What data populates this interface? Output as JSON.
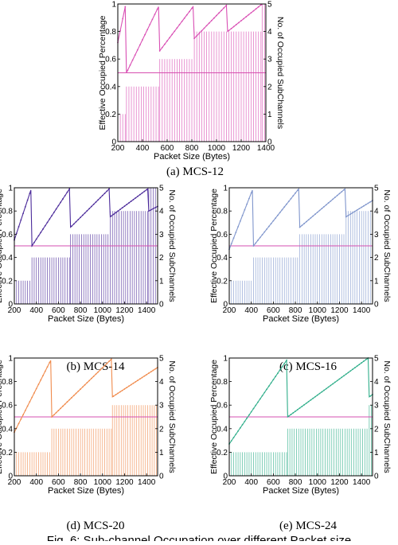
{
  "figure": {
    "caption": "Fig. 6: Sub-channel Occupation over different Packet size"
  },
  "chart_data": [
    {
      "type": "line",
      "caption": "(a) MCS-12",
      "color": "#d94fb4",
      "xlabel": "Packet Size (Bytes)",
      "ylabel_left": "Effective Occupied Percentage",
      "ylabel_right": "No. of Occupied SubChannels",
      "xlim": [
        200,
        1400
      ],
      "xticks": [
        "200",
        "400",
        "600",
        "800",
        "1000",
        "1200",
        "1400"
      ],
      "ylim_left": [
        0,
        1
      ],
      "yticks_left": [
        "0",
        "0.2",
        "0.4",
        "0.6",
        "0.8",
        "1"
      ],
      "ylim_right": [
        0,
        5
      ],
      "yticks_right": [
        "0",
        "1",
        "2",
        "3",
        "4",
        "5"
      ],
      "reference_line": 0.5,
      "packet_step": 20,
      "subchannel_steps": [
        {
          "x_start": 200,
          "x_end": 270,
          "subchannels": 1
        },
        {
          "x_start": 270,
          "x_end": 540,
          "subchannels": 2
        },
        {
          "x_start": 540,
          "x_end": 820,
          "subchannels": 3
        },
        {
          "x_start": 820,
          "x_end": 1370,
          "subchannels": 4
        },
        {
          "x_start": 1370,
          "x_end": 1400,
          "subchannels": 5
        }
      ],
      "efficiency_segments": [
        {
          "x_start": 200,
          "x_end": 260,
          "y_start": 0.72,
          "y_end": 0.98
        },
        {
          "x_start": 270,
          "x_end": 530,
          "y_start": 0.5,
          "y_end": 0.98
        },
        {
          "x_start": 540,
          "x_end": 810,
          "y_start": 0.66,
          "y_end": 0.98
        },
        {
          "x_start": 820,
          "x_end": 1080,
          "y_start": 0.75,
          "y_end": 0.99
        },
        {
          "x_start": 1090,
          "x_end": 1370,
          "y_start": 0.8,
          "y_end": 1.0
        }
      ]
    },
    {
      "type": "line",
      "caption": "(b) MCS-14",
      "color": "#4b2a9a",
      "xlabel": "Packet Size (Bytes)",
      "ylabel_left": "Effective Occupied Percentage",
      "ylabel_right": "No. of Occupied SubChannels",
      "xlim": [
        200,
        1500
      ],
      "xticks": [
        "200",
        "400",
        "600",
        "800",
        "1000",
        "1200",
        "1400"
      ],
      "ylim_left": [
        0,
        1
      ],
      "yticks_left": [
        "0",
        "0.2",
        "0.4",
        "0.6",
        "0.8",
        "1"
      ],
      "ylim_right": [
        0,
        5
      ],
      "yticks_right": [
        "0",
        "1",
        "2",
        "3",
        "4",
        "5"
      ],
      "reference_line": 0.5,
      "packet_step": 20,
      "subchannel_steps": [
        {
          "x_start": 200,
          "x_end": 360,
          "subchannels": 1
        },
        {
          "x_start": 360,
          "x_end": 710,
          "subchannels": 2
        },
        {
          "x_start": 710,
          "x_end": 1070,
          "subchannels": 3
        },
        {
          "x_start": 1070,
          "x_end": 1420,
          "subchannels": 4
        },
        {
          "x_start": 1420,
          "x_end": 1500,
          "subchannels": 5
        }
      ],
      "efficiency_segments": [
        {
          "x_start": 200,
          "x_end": 350,
          "y_start": 0.55,
          "y_end": 0.98
        },
        {
          "x_start": 360,
          "x_end": 700,
          "y_start": 0.5,
          "y_end": 0.99
        },
        {
          "x_start": 710,
          "x_end": 1060,
          "y_start": 0.66,
          "y_end": 0.99
        },
        {
          "x_start": 1070,
          "x_end": 1410,
          "y_start": 0.75,
          "y_end": 0.99
        },
        {
          "x_start": 1420,
          "x_end": 1500,
          "y_start": 0.8,
          "y_end": 0.84
        }
      ]
    },
    {
      "type": "line",
      "caption": "(c) MCS-16",
      "color": "#7f95cc",
      "xlabel": "Packet Size (Bytes)",
      "ylabel_left": "Effective Occupied Percentage",
      "ylabel_right": "No. of Occupied SubChannels",
      "xlim": [
        200,
        1500
      ],
      "xticks": [
        "200",
        "400",
        "600",
        "800",
        "1000",
        "1200",
        "1400"
      ],
      "ylim_left": [
        0,
        1
      ],
      "yticks_left": [
        "0",
        "0.2",
        "0.4",
        "0.6",
        "0.8",
        "1"
      ],
      "ylim_right": [
        0,
        5
      ],
      "yticks_right": [
        "0",
        "1",
        "2",
        "3",
        "4",
        "5"
      ],
      "reference_line": 0.5,
      "packet_step": 20,
      "subchannel_steps": [
        {
          "x_start": 200,
          "x_end": 420,
          "subchannels": 1
        },
        {
          "x_start": 420,
          "x_end": 840,
          "subchannels": 2
        },
        {
          "x_start": 840,
          "x_end": 1260,
          "subchannels": 3
        },
        {
          "x_start": 1260,
          "x_end": 1500,
          "subchannels": 4
        }
      ],
      "efficiency_segments": [
        {
          "x_start": 200,
          "x_end": 410,
          "y_start": 0.47,
          "y_end": 0.98
        },
        {
          "x_start": 420,
          "x_end": 830,
          "y_start": 0.5,
          "y_end": 0.99
        },
        {
          "x_start": 840,
          "x_end": 1250,
          "y_start": 0.66,
          "y_end": 0.99
        },
        {
          "x_start": 1260,
          "x_end": 1500,
          "y_start": 0.75,
          "y_end": 0.89
        }
      ]
    },
    {
      "type": "line",
      "caption": "(d) MCS-20",
      "color": "#f08a4b",
      "xlabel": "Packet Size (Bytes)",
      "ylabel_left": "Effective Occupied Percentage",
      "ylabel_right": "No. of Occupied SubChannels",
      "xlim": [
        200,
        1500
      ],
      "xticks": [
        "200",
        "400",
        "600",
        "800",
        "1000",
        "1200",
        "1400"
      ],
      "ylim_left": [
        0,
        1
      ],
      "yticks_left": [
        "0",
        "0.2",
        "0.4",
        "0.6",
        "0.8",
        "1"
      ],
      "ylim_right": [
        0,
        5
      ],
      "yticks_right": [
        "0",
        "1",
        "2",
        "3",
        "4",
        "5"
      ],
      "reference_line": 0.5,
      "packet_step": 20,
      "subchannel_steps": [
        {
          "x_start": 200,
          "x_end": 540,
          "subchannels": 1
        },
        {
          "x_start": 540,
          "x_end": 1090,
          "subchannels": 2
        },
        {
          "x_start": 1090,
          "x_end": 1500,
          "subchannels": 3
        }
      ],
      "efficiency_segments": [
        {
          "x_start": 200,
          "x_end": 530,
          "y_start": 0.37,
          "y_end": 0.98
        },
        {
          "x_start": 540,
          "x_end": 1080,
          "y_start": 0.5,
          "y_end": 0.99
        },
        {
          "x_start": 1090,
          "x_end": 1500,
          "y_start": 0.67,
          "y_end": 0.92
        }
      ]
    },
    {
      "type": "line",
      "caption": "(e) MCS-24",
      "color": "#2fae8a",
      "xlabel": "Packet Size (Bytes)",
      "ylabel_left": "Effective Occupied Percentage",
      "ylabel_right": "No. of Occupied SubChannels",
      "xlim": [
        200,
        1500
      ],
      "xticks": [
        "200",
        "400",
        "600",
        "800",
        "1000",
        "1200",
        "1400"
      ],
      "ylim_left": [
        0,
        1
      ],
      "yticks_left": [
        "0",
        "0.2",
        "0.4",
        "0.6",
        "0.8",
        "1"
      ],
      "ylim_right": [
        0,
        5
      ],
      "yticks_right": [
        "0",
        "1",
        "2",
        "3",
        "4",
        "5"
      ],
      "reference_line": 0.5,
      "packet_step": 20,
      "subchannel_steps": [
        {
          "x_start": 200,
          "x_end": 730,
          "subchannels": 1
        },
        {
          "x_start": 730,
          "x_end": 1470,
          "subchannels": 2
        },
        {
          "x_start": 1470,
          "x_end": 1500,
          "subchannels": 3
        }
      ],
      "efficiency_segments": [
        {
          "x_start": 200,
          "x_end": 720,
          "y_start": 0.27,
          "y_end": 0.98
        },
        {
          "x_start": 730,
          "x_end": 1460,
          "y_start": 0.5,
          "y_end": 1.0
        },
        {
          "x_start": 1470,
          "x_end": 1500,
          "y_start": 0.67,
          "y_end": 0.69
        }
      ]
    }
  ]
}
